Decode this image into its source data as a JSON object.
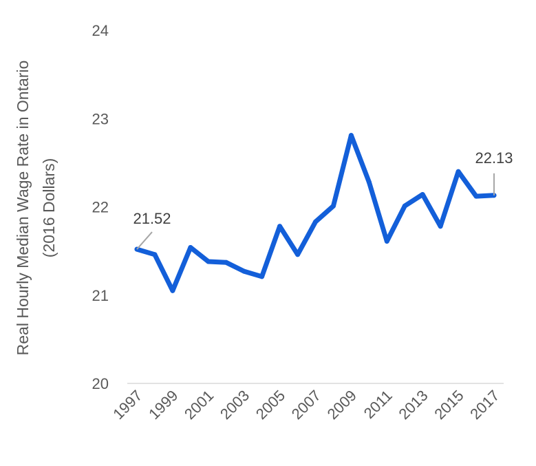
{
  "chart_data": {
    "type": "line",
    "title": "",
    "xlabel": "",
    "ylabel_lines": [
      "Real Hourly Median Wage Rate in Ontario",
      "(2016 Dollars)"
    ],
    "ylim": [
      20,
      24
    ],
    "yticks": [
      "20",
      "21",
      "22",
      "23",
      "24"
    ],
    "xtick_labels": [
      "1997",
      "1999",
      "2001",
      "2003",
      "2005",
      "2007",
      "2009",
      "2011",
      "2013",
      "2015",
      "2017"
    ],
    "grid": false,
    "legend": "none",
    "line_color": "#135FD9",
    "series": [
      {
        "x": [
          1997,
          1998,
          1999,
          2000,
          2001,
          2002,
          2003,
          2004,
          2005,
          2006,
          2007,
          2008,
          2009,
          2010,
          2011,
          2012,
          2013,
          2014,
          2015,
          2016,
          2017
        ],
        "values": [
          21.52,
          21.46,
          21.05,
          21.54,
          21.38,
          21.37,
          21.27,
          21.21,
          21.78,
          21.46,
          21.83,
          22.01,
          22.81,
          22.28,
          21.61,
          22.01,
          22.14,
          21.78,
          22.4,
          22.12,
          22.13
        ]
      }
    ],
    "annotations": [
      {
        "x": 1997,
        "text": "21.52"
      },
      {
        "x": 2017,
        "text": "22.13"
      }
    ]
  }
}
